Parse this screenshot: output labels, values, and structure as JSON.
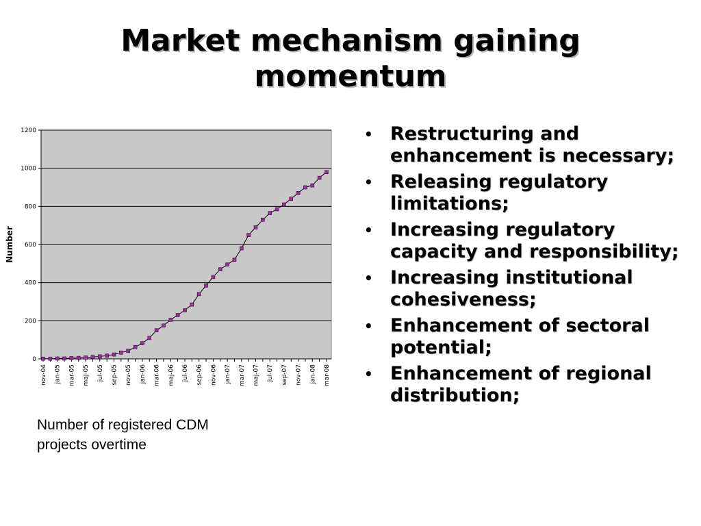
{
  "slide": {
    "title": "Market mechanism gaining momentum",
    "caption": "Number of registered CDM projects overtime",
    "bullet_glyph": "•",
    "bullets": [
      "Restructuring and enhancement is necessary;",
      "Releasing regulatory limitations;",
      "Increasing regulatory capacity and responsibility;",
      "Increasing institutional cohesiveness;",
      "Enhancement of sectoral potential;",
      "Enhancement of regional distribution;"
    ]
  },
  "chart_data": {
    "type": "line",
    "title": "",
    "xlabel": "",
    "ylabel": "Number",
    "ylim": [
      0,
      1200
    ],
    "yticks": [
      0,
      200,
      400,
      600,
      800,
      1000,
      1200
    ],
    "grid": true,
    "legend": "none",
    "x": [
      "nov-04",
      "dec-04",
      "jan-05",
      "feb-05",
      "mar-05",
      "apr-05",
      "maj-05",
      "jun-05",
      "jul-05",
      "aug-05",
      "sep-05",
      "okt-05",
      "nov-05",
      "dec-05",
      "jan-06",
      "feb-06",
      "mar-06",
      "apr-06",
      "maj-06",
      "jun-06",
      "jul-06",
      "aug-06",
      "sep-06",
      "okt-06",
      "nov-06",
      "dec-06",
      "jan-07",
      "feb-07",
      "mar-07",
      "apr-07",
      "maj-07",
      "jun-07",
      "jul-07",
      "aug-07",
      "sep-07",
      "okt-07",
      "nov-07",
      "dec-07",
      "jan-08",
      "feb-08",
      "mar-08"
    ],
    "xtick_labels": [
      "nov-04",
      "jan-05",
      "mar-05",
      "maj-05",
      "jul-05",
      "sep-05",
      "nov-05",
      "jan-06",
      "mar-06",
      "maj-06",
      "jul-06",
      "sep-06",
      "nov-06",
      "jan-07",
      "mar-07",
      "maj-07",
      "jul-07",
      "sep-07",
      "nov-07",
      "jan-08",
      "mar-08"
    ],
    "values": [
      1,
      1,
      2,
      2,
      4,
      5,
      7,
      10,
      13,
      17,
      23,
      33,
      42,
      62,
      82,
      110,
      150,
      175,
      205,
      230,
      255,
      285,
      340,
      385,
      430,
      470,
      495,
      520,
      580,
      650,
      690,
      730,
      765,
      785,
      810,
      840,
      870,
      900,
      910,
      950,
      980
    ],
    "colors": {
      "plot_bg": "#c8c8c8",
      "gridline": "#000000",
      "line": "#000000",
      "marker": "#9b2fa0"
    }
  }
}
